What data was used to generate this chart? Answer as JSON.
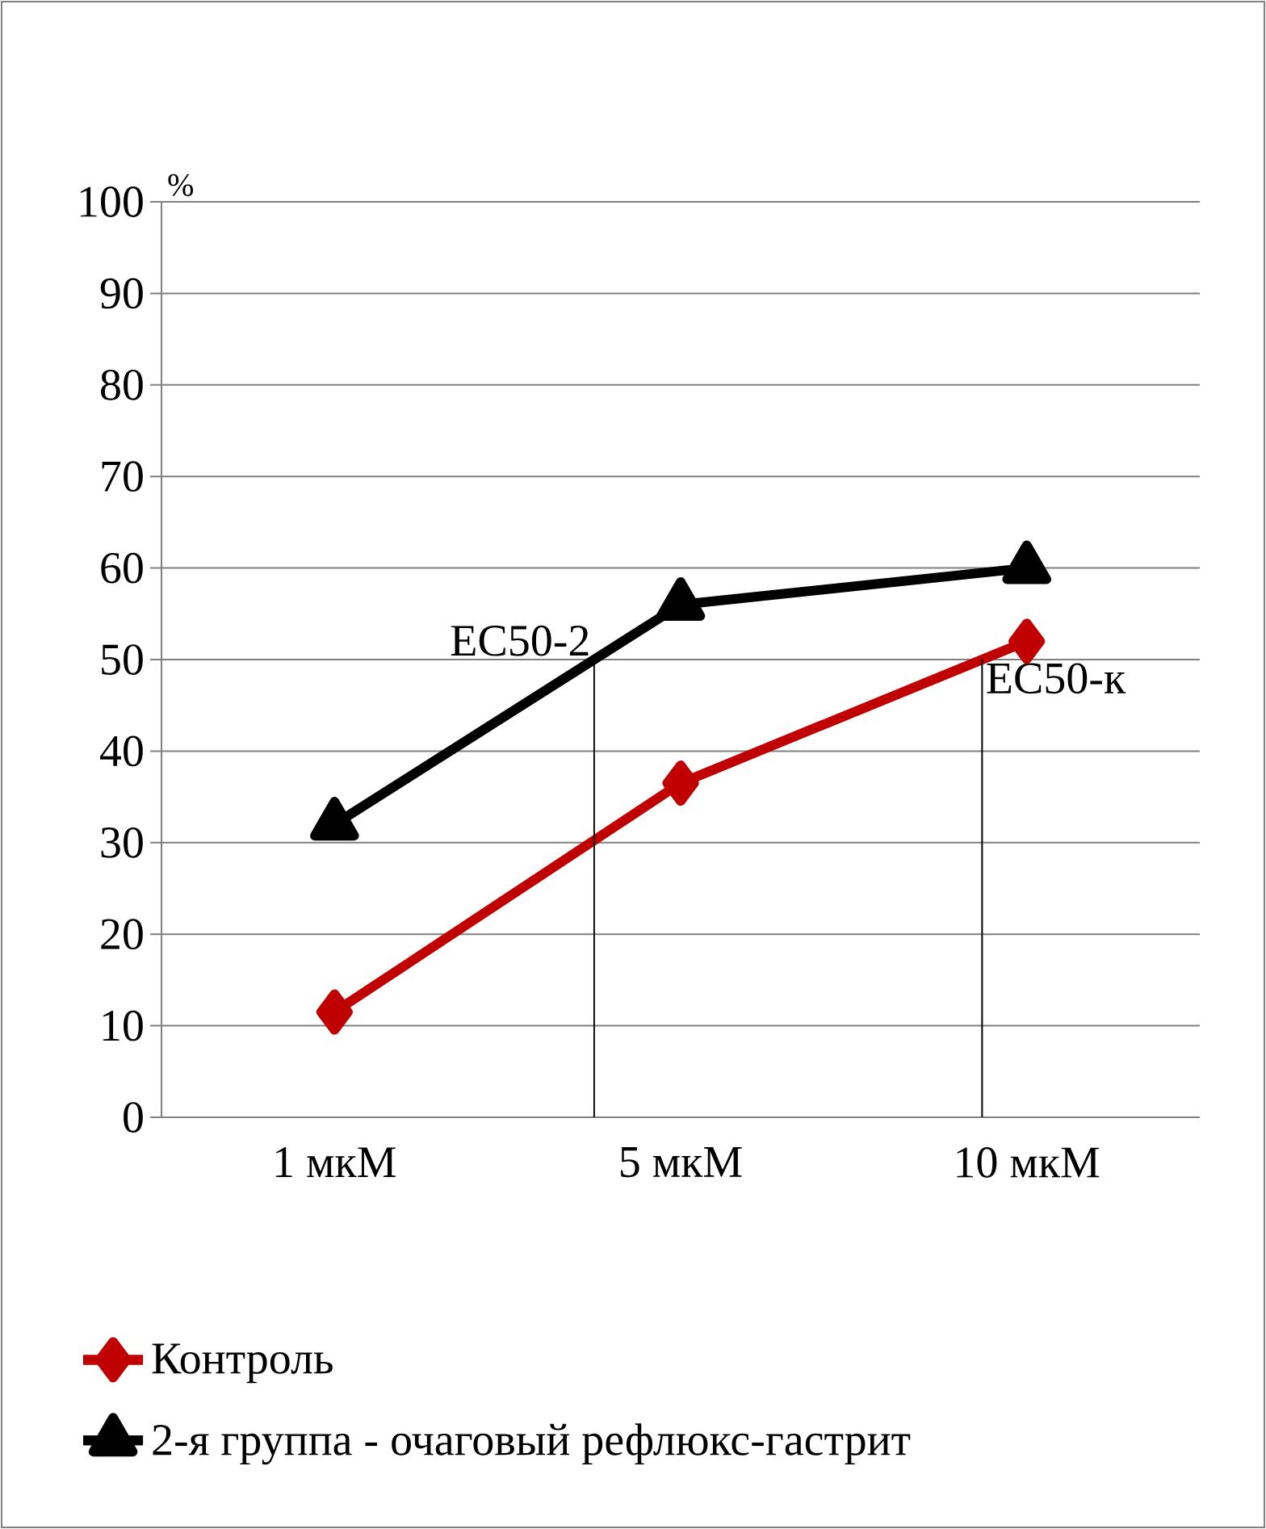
{
  "chart_data": {
    "type": "line",
    "ylabel": "%",
    "categories": [
      "1 мкМ",
      "5 мкМ",
      "10 мкМ"
    ],
    "series": [
      {
        "name": "Контроль",
        "color": "#c00000",
        "marker": "diamond",
        "values": [
          11.5,
          36.5,
          52
        ]
      },
      {
        "name": "2-я группа -  очаговый рефлюкс-гастрит",
        "color": "#000000",
        "marker": "triangle",
        "values": [
          32,
          56,
          60
        ]
      }
    ],
    "ylim": [
      0,
      100
    ],
    "yticks": [
      0,
      10,
      20,
      30,
      40,
      50,
      60,
      70,
      80,
      90,
      100
    ],
    "annotations": [
      "EC50-к",
      "EC50-2"
    ],
    "grid": "y",
    "legend": "bottom"
  }
}
